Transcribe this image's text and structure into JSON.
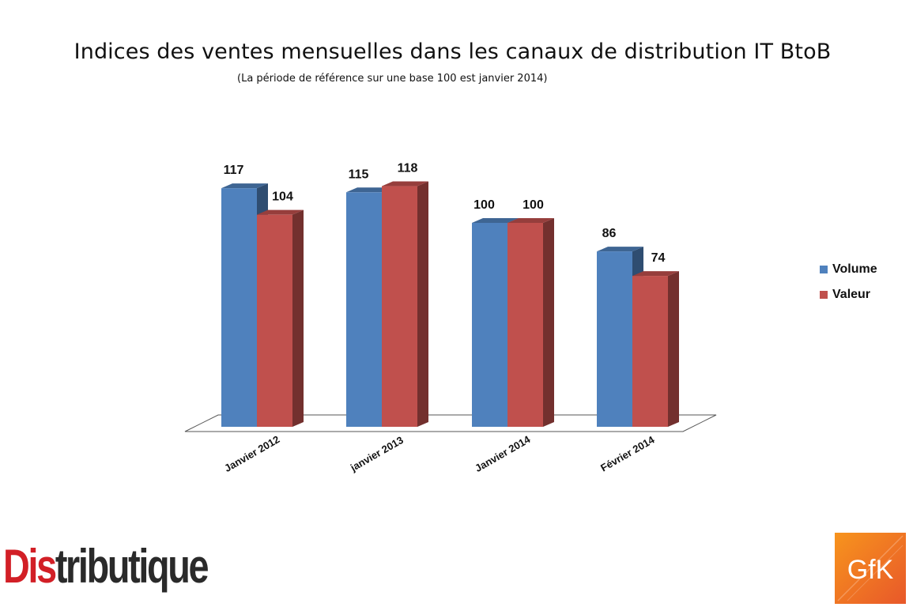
{
  "title": "Indices des ventes mensuelles dans les canaux de distribution IT BtoB",
  "subtitle": "(La période de référence sur une base 100 est janvier 2014)",
  "chart_data": {
    "type": "bar",
    "categories": [
      "Janvier 2012",
      "janvier 2013",
      "Janvier 2014",
      "Février 2014"
    ],
    "series": [
      {
        "name": "Volume",
        "values": [
          117,
          115,
          100,
          86
        ],
        "color": "#4F81BD"
      },
      {
        "name": "Valeur",
        "values": [
          104,
          118,
          100,
          74
        ],
        "color": "#C0504D"
      }
    ],
    "xlabel": "",
    "ylabel": "",
    "grid": false,
    "legend_position": "right",
    "style": "3d-column"
  },
  "legend": [
    {
      "label": "Volume",
      "color": "#4F81BD"
    },
    {
      "label": "Valeur",
      "color": "#C0504D"
    }
  ],
  "logos": {
    "distributique": {
      "accent": "Dis",
      "rest": "tributique"
    },
    "gfk": "GfK"
  }
}
